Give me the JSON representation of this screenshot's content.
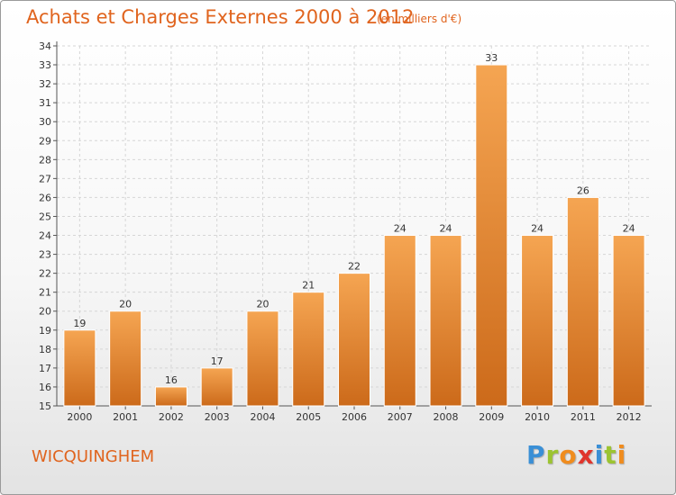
{
  "chart_data": {
    "type": "bar",
    "title": "Achats et Charges Externes 2000 à 2012",
    "subtitle": "(en milliers d'€)",
    "categories": [
      "2000",
      "2001",
      "2002",
      "2003",
      "2004",
      "2005",
      "2006",
      "2007",
      "2008",
      "2009",
      "2010",
      "2011",
      "2012"
    ],
    "values": [
      19,
      20,
      16,
      17,
      20,
      21,
      22,
      24,
      24,
      33,
      24,
      26,
      24
    ],
    "ylim": [
      15,
      34
    ],
    "ytick_step": 1,
    "grid": true,
    "legend": "none",
    "bar_color": "#f08c2a"
  },
  "commune": "WICQUINGHEM",
  "logo": {
    "letters": [
      "P",
      "r",
      "o",
      "x",
      "i",
      "t",
      "i"
    ]
  }
}
